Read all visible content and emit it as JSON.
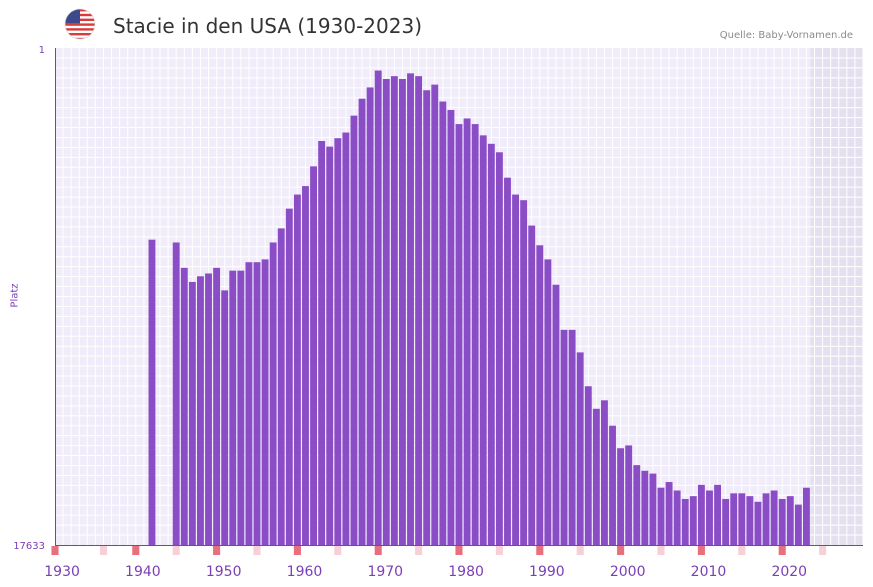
{
  "header": {
    "title": "Stacie in den USA (1930-2023)",
    "source": "Quelle: Baby-Vornamen.de",
    "flag_icon": "us-flag-icon"
  },
  "colors": {
    "bar": "#8a4dc6",
    "axis": "#7b3fb5",
    "grid_bg": "#f1ecfa",
    "future_bg": "#e4e0ef",
    "marker_strong": "#e8707e",
    "marker_light": "#f7cfd6"
  },
  "chart_data": {
    "type": "bar",
    "title": "Stacie in den USA (1930-2023)",
    "xlabel": "",
    "ylabel": "Platz",
    "y_inverted": true,
    "ylim": [
      1,
      17633
    ],
    "y_tick_labels": [
      "1",
      "17633"
    ],
    "x_range": [
      1929,
      2029
    ],
    "x_tick_labels": [
      "1930",
      "1940",
      "1950",
      "1960",
      "1970",
      "1980",
      "1990",
      "2000",
      "2010",
      "2020"
    ],
    "x_tick_years": [
      1930,
      1940,
      1950,
      1960,
      1970,
      1980,
      1990,
      2000,
      2010,
      2020
    ],
    "series": [
      {
        "name": "Platz",
        "years": [
          1941,
          1944,
          1945,
          1946,
          1947,
          1948,
          1949,
          1950,
          1951,
          1952,
          1953,
          1954,
          1955,
          1956,
          1957,
          1958,
          1959,
          1960,
          1961,
          1962,
          1963,
          1964,
          1965,
          1966,
          1967,
          1968,
          1969,
          1970,
          1971,
          1972,
          1973,
          1974,
          1975,
          1976,
          1977,
          1978,
          1979,
          1980,
          1981,
          1982,
          1983,
          1984,
          1985,
          1986,
          1987,
          1988,
          1989,
          1990,
          1991,
          1992,
          1993,
          1994,
          1995,
          1996,
          1997,
          1998,
          1999,
          2000,
          2001,
          2002,
          2003,
          2004,
          2005,
          2006,
          2007,
          2008,
          2009,
          2010,
          2011,
          2012,
          2013,
          2014,
          2015,
          2016,
          2017,
          2018,
          2019,
          2020,
          2021,
          2022
        ],
        "values": [
          6800,
          6900,
          7800,
          8300,
          8100,
          8000,
          7800,
          8600,
          7900,
          7900,
          7600,
          7600,
          7500,
          6900,
          6400,
          5700,
          5200,
          4900,
          4200,
          3300,
          3500,
          3200,
          3000,
          2400,
          1800,
          1400,
          800,
          1100,
          1000,
          1100,
          900,
          1000,
          1500,
          1300,
          1900,
          2200,
          2700,
          2500,
          2700,
          3100,
          3400,
          3700,
          4600,
          5200,
          5400,
          6300,
          7000,
          7500,
          8400,
          10000,
          10000,
          10800,
          12000,
          12800,
          12500,
          13400,
          14200,
          14100,
          14800,
          15000,
          15100,
          15600,
          15400,
          15700,
          16000,
          15900,
          15500,
          15700,
          15500,
          16000,
          15800,
          15800,
          15900,
          16100,
          15800,
          15700,
          16000,
          15900,
          16200,
          15600
        ]
      }
    ],
    "marker_years_strong": [
      1929,
      1939,
      1949,
      1959,
      1969,
      1979,
      1989,
      1999,
      2009,
      2019
    ],
    "marker_years_light": [
      1935,
      1944,
      1954,
      1964,
      1974,
      1984,
      1994,
      2004,
      2014,
      2024
    ]
  }
}
